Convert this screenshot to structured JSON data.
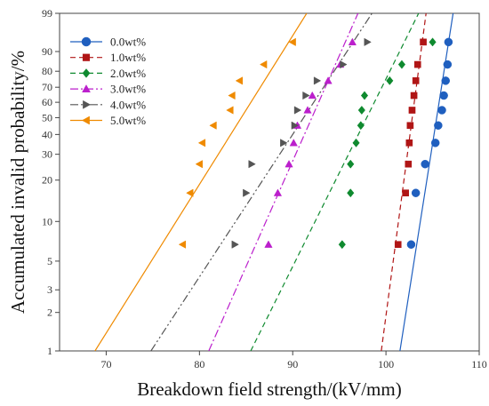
{
  "chart_data": {
    "type": "scatter",
    "xlabel": "Breakdown field strength/(kV/mm)",
    "ylabel": "Accumulated invalid probability/%",
    "xlim": [
      65,
      110
    ],
    "ylim": [
      1,
      99
    ],
    "yscale": "weibull",
    "xticks": [
      70,
      80,
      90,
      100,
      110
    ],
    "yticks": [
      1,
      2,
      3,
      5,
      10,
      20,
      30,
      40,
      50,
      60,
      70,
      80,
      90,
      99
    ],
    "grid": false,
    "legend_position": "top-left",
    "series": [
      {
        "name": "0.0wt%",
        "color": "#1f5fbf",
        "marker": "circle",
        "line_style": "solid",
        "points": [
          [
            102.7,
            6.7
          ],
          [
            103.2,
            16.2
          ],
          [
            104.2,
            25.8
          ],
          [
            105.3,
            35.5
          ],
          [
            105.6,
            45.2
          ],
          [
            106.0,
            54.8
          ],
          [
            106.2,
            64.5
          ],
          [
            106.4,
            74.2
          ],
          [
            106.6,
            83.8
          ],
          [
            106.7,
            93.5
          ]
        ],
        "fit_line": [
          [
            101.5,
            1
          ],
          [
            107.2,
            99
          ]
        ]
      },
      {
        "name": "1.0wt%",
        "color": "#b01515",
        "marker": "square",
        "line_style": "dashed",
        "points": [
          [
            101.3,
            6.7
          ],
          [
            102.1,
            16.2
          ],
          [
            102.4,
            25.8
          ],
          [
            102.5,
            35.5
          ],
          [
            102.6,
            45.2
          ],
          [
            102.8,
            54.8
          ],
          [
            103.0,
            64.5
          ],
          [
            103.2,
            74.2
          ],
          [
            103.4,
            83.8
          ],
          [
            104.0,
            93.5
          ]
        ],
        "fit_line": [
          [
            99.5,
            1
          ],
          [
            104.3,
            99
          ]
        ]
      },
      {
        "name": "2.0wt%",
        "color": "#0f8a2f",
        "marker": "diamond",
        "line_style": "dashed",
        "points": [
          [
            95.3,
            6.7
          ],
          [
            96.2,
            16.2
          ],
          [
            96.2,
            25.8
          ],
          [
            96.8,
            35.5
          ],
          [
            97.3,
            45.2
          ],
          [
            97.4,
            54.8
          ],
          [
            97.7,
            64.5
          ],
          [
            100.4,
            74.2
          ],
          [
            101.7,
            83.8
          ],
          [
            105.0,
            93.5
          ]
        ],
        "fit_line": [
          [
            85.5,
            1
          ],
          [
            103.5,
            99
          ]
        ]
      },
      {
        "name": "3.0wt%",
        "color": "#bb1fcc",
        "marker": "triangle-up",
        "line_style": "dashdot",
        "points": [
          [
            87.4,
            6.7
          ],
          [
            88.4,
            16.2
          ],
          [
            89.6,
            25.8
          ],
          [
            90.1,
            35.5
          ],
          [
            90.5,
            45.2
          ],
          [
            91.6,
            54.8
          ],
          [
            92.1,
            64.5
          ],
          [
            93.8,
            74.2
          ],
          [
            95.1,
            83.8
          ],
          [
            96.4,
            93.5
          ]
        ],
        "fit_line": [
          [
            81.0,
            1
          ],
          [
            97.0,
            99
          ]
        ]
      },
      {
        "name": "4.0wt%",
        "color": "#555555",
        "marker": "triangle-right",
        "line_style": "dashdotdot",
        "points": [
          [
            83.8,
            6.7
          ],
          [
            85.0,
            16.2
          ],
          [
            85.6,
            25.8
          ],
          [
            89.0,
            35.5
          ],
          [
            90.2,
            45.2
          ],
          [
            90.5,
            54.8
          ],
          [
            91.4,
            64.5
          ],
          [
            92.6,
            74.2
          ],
          [
            95.4,
            83.8
          ],
          [
            98.0,
            93.5
          ]
        ],
        "fit_line": [
          [
            74.8,
            1
          ],
          [
            98.5,
            99
          ]
        ]
      },
      {
        "name": "5.0wt%",
        "color": "#ef8a00",
        "marker": "triangle-left",
        "line_style": "solid",
        "points": [
          [
            78.2,
            6.7
          ],
          [
            79.0,
            16.2
          ],
          [
            80.0,
            25.8
          ],
          [
            80.3,
            35.5
          ],
          [
            81.5,
            45.2
          ],
          [
            83.3,
            54.8
          ],
          [
            83.5,
            64.5
          ],
          [
            84.3,
            74.2
          ],
          [
            86.9,
            83.8
          ],
          [
            90.0,
            93.5
          ]
        ],
        "fit_line": [
          [
            68.8,
            1
          ],
          [
            91.5,
            99
          ]
        ]
      }
    ]
  }
}
